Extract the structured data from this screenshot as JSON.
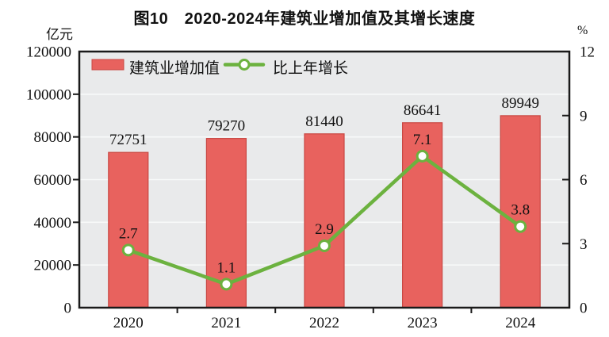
{
  "chart_data": {
    "type": "bar+line",
    "title": "图10　2020-2024年建筑业增加值及其增长速度",
    "categories": [
      "2020",
      "2021",
      "2022",
      "2023",
      "2024"
    ],
    "series": [
      {
        "name": "建筑业增加值",
        "type": "bar",
        "axis": "left",
        "values": [
          72751,
          79270,
          81440,
          86641,
          89949
        ],
        "color": "#e8625e",
        "border_color": "#c94843"
      },
      {
        "name": "比上年增长",
        "type": "line",
        "axis": "right",
        "values": [
          2.7,
          1.1,
          2.9,
          7.1,
          3.8
        ],
        "color": "#6cb23f",
        "marker_fill": "#ffffff"
      }
    ],
    "left_axis": {
      "unit": "亿元",
      "min": 0,
      "max": 120000,
      "step": 20000,
      "ticks": [
        0,
        20000,
        40000,
        60000,
        80000,
        100000,
        120000
      ]
    },
    "right_axis": {
      "unit": "%",
      "min": 0,
      "max": 12,
      "step": 3,
      "ticks": [
        0,
        3,
        6,
        9,
        12
      ]
    },
    "plot": {
      "background": "#e9eaeb",
      "gridline_color": "#f8f9f9",
      "axis_color": "#1a1a1a",
      "grid": "horizontal",
      "legend_position": "top-left-inside"
    }
  }
}
